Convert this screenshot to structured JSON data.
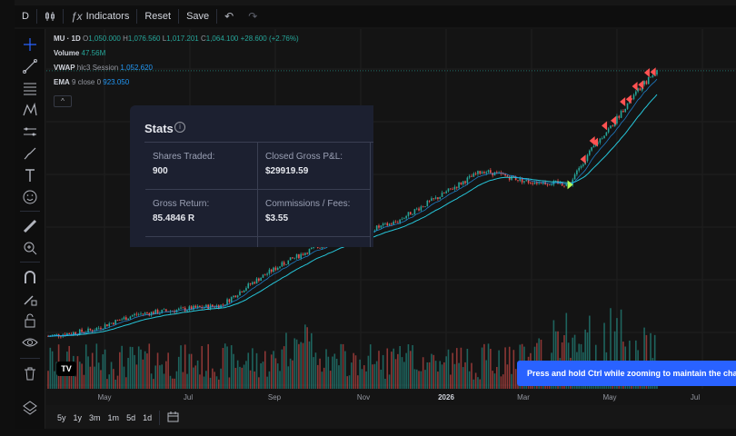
{
  "toolbar": {
    "interval": "D",
    "indicators_label": "Indicators",
    "reset_label": "Reset",
    "save_label": "Save",
    "icons": [
      "candles-icon",
      "fx-icon",
      "undo-icon",
      "redo-icon"
    ]
  },
  "legend": {
    "symbol": "MU · 1D",
    "o_label": "O",
    "open": "1,050.000",
    "h_label": "H",
    "high": "1,076.560",
    "l_label": "L",
    "low": "1,017.201",
    "c_label": "C",
    "close": "1,064.100",
    "change": "+28.600 (+2.76%)",
    "volume_label": "Volume",
    "volume_value": "47.56M",
    "vwap_label": "VWAP",
    "vwap_params": "hlc3 Session",
    "vwap_value": "1,052.620",
    "ema_label": "EMA",
    "ema_params": "9 close 0",
    "ema_value": "923.050",
    "collapse_glyph": "^"
  },
  "stats": {
    "title": "Stats",
    "info_glyph": "i",
    "cells": [
      {
        "label": "Shares Traded:",
        "value": "900"
      },
      {
        "label": "Closed Gross P&L:",
        "value": "$29919.59"
      },
      {
        "label": "Gross Return:",
        "value": "85.4846 R"
      },
      {
        "label": "Commissions / Fees:",
        "value": "$3.55"
      }
    ]
  },
  "x_axis": {
    "labels": [
      "May",
      "Jul",
      "Sep",
      "Nov",
      "2026",
      "Mar",
      "May",
      "Jul"
    ]
  },
  "bottom_bar": {
    "ranges": [
      "5y",
      "1y",
      "3m",
      "1m",
      "5d",
      "1d"
    ],
    "date_range_icon": "calendar-icon"
  },
  "toast": {
    "text": "Press and hold Ctrl while zooming to maintain the chart position"
  },
  "logo": {
    "text": "TV"
  },
  "sidebar_tools": [
    "crosshair-icon",
    "trend-line-icon",
    "fib-icon",
    "pattern-icon",
    "prediction-icon",
    "brush-icon",
    "text-icon",
    "emoji-icon",
    "ruler-icon",
    "zoom-icon",
    "magnet-icon",
    "lock-drawing-icon",
    "lock-icon",
    "eye-icon",
    "trash-icon",
    "layers-icon"
  ],
  "colors": {
    "up": "#26a69a",
    "down": "#ef5350",
    "vwap": "#26c6da",
    "ema": "#2196f3",
    "trade_marker": "#ff5252",
    "entry_marker": "#b2ff59",
    "accent": "#2962ff"
  },
  "chart_data": {
    "type": "candlestick",
    "x_range": [
      "2025-04",
      "2026-07"
    ],
    "price_path": [
      {
        "x": "2025-04",
        "y": 90
      },
      {
        "x": "2025-05",
        "y": 95
      },
      {
        "x": "2025-06",
        "y": 110
      },
      {
        "x": "2025-07",
        "y": 115
      },
      {
        "x": "2025-08",
        "y": 120
      },
      {
        "x": "2025-09",
        "y": 160
      },
      {
        "x": "2025-10",
        "y": 200
      },
      {
        "x": "2025-11",
        "y": 230
      },
      {
        "x": "2025-12",
        "y": 260
      },
      {
        "x": "2026-01",
        "y": 330
      },
      {
        "x": "2026-02",
        "y": 420
      },
      {
        "x": "2026-03",
        "y": 380
      },
      {
        "x": "2026-04",
        "y": 370
      },
      {
        "x": "2026-05",
        "y": 650
      },
      {
        "x": "2026-06",
        "y": 1064.1
      }
    ],
    "last": {
      "open": 1050.0,
      "high": 1076.56,
      "low": 1017.201,
      "close": 1064.1
    }
  }
}
